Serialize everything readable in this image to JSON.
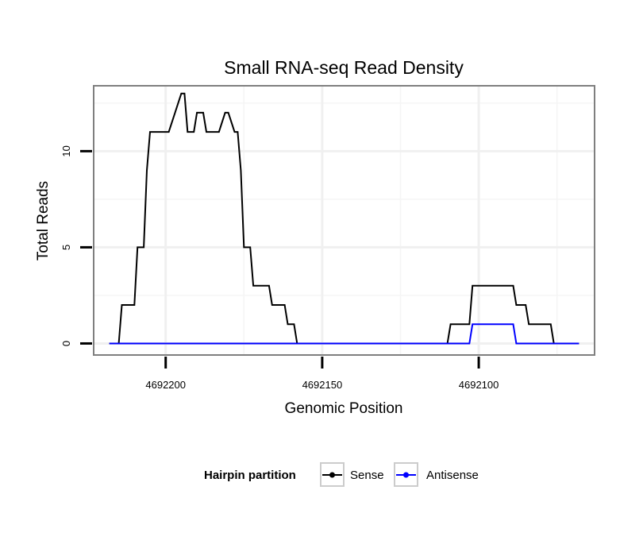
{
  "chart_data": {
    "type": "line",
    "title": "Small RNA-seq Read Density",
    "xlabel": "Genomic Position",
    "ylabel": "Total Reads",
    "x_reversed": true,
    "xlim": [
      4692223,
      4692063
    ],
    "ylim": [
      -0.6,
      13.4
    ],
    "x_ticks": [
      4692200,
      4692150,
      4692100
    ],
    "x_tick_labels": [
      "4692200",
      "4692150",
      "4692100"
    ],
    "x_minor_gridlines": [
      4692175,
      4692125,
      4692075
    ],
    "y_ticks": [
      0,
      5,
      10
    ],
    "y_tick_labels": [
      "0",
      "5",
      "10"
    ],
    "y_minor_gridlines": [
      2.5,
      7.5,
      12.5
    ],
    "legend": {
      "title": "Hairpin partition",
      "position": "bottom",
      "entries": [
        {
          "label": "Sense",
          "color": "#000000"
        },
        {
          "label": "Antisense",
          "color": "#0000ff"
        }
      ]
    },
    "series": [
      {
        "name": "Sense",
        "color": "#000000",
        "x": [
          4692218,
          4692215,
          4692214,
          4692210,
          4692209,
          4692207,
          4692206,
          4692205,
          4692203,
          4692202,
          4692199,
          4692197,
          4692195,
          4692194,
          4692193,
          4692191,
          4692190,
          4692188,
          4692187,
          4692186,
          4692183,
          4692181,
          4692180,
          4692178,
          4692177,
          4692176,
          4692175,
          4692173,
          4692172,
          4692167,
          4692166,
          4692162,
          4692161,
          4692159,
          4692158,
          4692156,
          4692155,
          4692110,
          4692109,
          4692103,
          4692102,
          4692089,
          4692088,
          4692085,
          4692084,
          4692077,
          4692076,
          4692068
        ],
        "y": [
          0,
          0,
          2,
          2,
          5,
          5,
          9,
          11,
          11,
          11,
          11,
          12,
          13,
          13,
          11,
          11,
          12,
          12,
          11,
          11,
          11,
          12,
          12,
          11,
          11,
          9,
          5,
          5,
          3,
          3,
          2,
          2,
          1,
          1,
          0,
          0,
          0,
          0,
          1,
          1,
          3,
          3,
          2,
          2,
          1,
          1,
          0,
          0
        ]
      },
      {
        "name": "Antisense",
        "color": "#0000ff",
        "x": [
          4692218,
          4692162,
          4692103,
          4692102,
          4692089,
          4692088,
          4692077,
          4692068
        ],
        "y": [
          0,
          0,
          0,
          1,
          1,
          0,
          0,
          0
        ]
      }
    ]
  }
}
